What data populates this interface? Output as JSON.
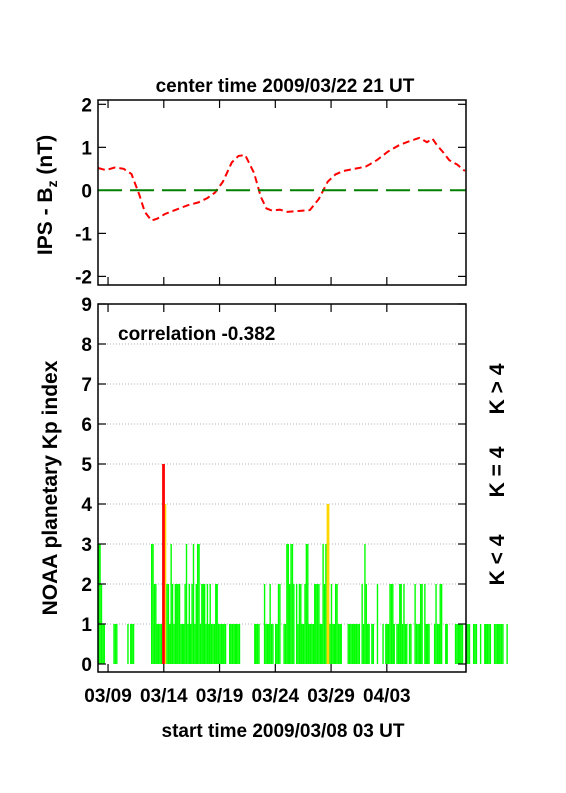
{
  "chart_data": [
    {
      "type": "line",
      "title": "center time 2009/03/22 21 UT",
      "ylabel_main": "IPS - B",
      "ylabel_sub": "z",
      "ylabel_unit": " (nT)",
      "xlim_days": [
        0,
        33
      ],
      "ylim": [
        -2.2,
        2.1
      ],
      "yticks": [
        "2",
        "1",
        "0",
        "-1",
        "-2"
      ],
      "ytick_values": [
        2,
        1,
        0,
        -1,
        -2
      ],
      "series": [
        {
          "color": "#ff0000",
          "style": "dashed",
          "x": [
            0,
            0.7,
            1.5,
            2.3,
            3.0,
            3.7,
            4.2,
            4.8,
            5.3,
            6.0,
            7.0,
            8.0,
            9.0,
            9.8,
            10.5,
            11.2,
            12.0,
            12.6,
            13.2,
            14.0,
            14.6,
            15.1,
            15.6,
            16.3,
            17.0,
            18.0,
            19.0,
            19.8,
            20.6,
            21.3,
            22.0,
            23.0,
            24.0,
            25.0,
            26.0,
            27.0,
            28.0,
            28.8,
            29.5,
            30.0,
            30.4,
            30.9,
            31.5,
            32.2,
            32.9
          ],
          "y": [
            0.52,
            0.47,
            0.53,
            0.5,
            0.38,
            -0.1,
            -0.5,
            -0.7,
            -0.66,
            -0.55,
            -0.45,
            -0.35,
            -0.28,
            -0.18,
            -0.05,
            0.2,
            0.65,
            0.8,
            0.82,
            0.4,
            -0.15,
            -0.42,
            -0.47,
            -0.45,
            -0.5,
            -0.48,
            -0.46,
            -0.2,
            0.2,
            0.37,
            0.45,
            0.5,
            0.55,
            0.7,
            0.9,
            1.05,
            1.15,
            1.22,
            1.12,
            1.2,
            1.05,
            0.9,
            0.7,
            0.6,
            0.45
          ]
        },
        {
          "color": "#008000",
          "style": "long-dashed",
          "x": [
            0,
            33
          ],
          "y": [
            0,
            0
          ]
        }
      ]
    },
    {
      "type": "bar",
      "ylabel": "NOAA planetary Kp index",
      "annotation": "correlation -0.382",
      "xlim_days": [
        0,
        33
      ],
      "ylim": [
        -0.2,
        9
      ],
      "yticks": [
        "9",
        "8",
        "7",
        "6",
        "5",
        "4",
        "3",
        "2",
        "1",
        "0"
      ],
      "ytick_values": [
        9,
        8,
        7,
        6,
        5,
        4,
        3,
        2,
        1,
        0
      ],
      "xticks": [
        "03/09",
        "03/14",
        "03/19",
        "03/24",
        "03/29",
        "04/03"
      ],
      "xtick_days": [
        0.9,
        5.9,
        10.9,
        15.9,
        20.9,
        25.9
      ],
      "xlabel": "start time 2009/03/08 03 UT",
      "bar_width_days": 0.125,
      "color_low": "#00ff00",
      "color_mid": "#ffd700",
      "color_high": "#ff0000",
      "legend": {
        "low": "K < 4",
        "mid": "K = 4",
        "high": "K > 4",
        "placement": "right"
      },
      "values": [
        3,
        3,
        2,
        1,
        1,
        0,
        0,
        0,
        0,
        0,
        0,
        1,
        1,
        1,
        0,
        0,
        0,
        0,
        0,
        0,
        0,
        1,
        0,
        1,
        1,
        1,
        0,
        0,
        0,
        0,
        0,
        0,
        0,
        0,
        0,
        0,
        0,
        0,
        3,
        3,
        2,
        2,
        1,
        1,
        1,
        1,
        5,
        5,
        4,
        2,
        2,
        1,
        3,
        2,
        1,
        2,
        2,
        2,
        2,
        1,
        1,
        1,
        2,
        3,
        1,
        2,
        1,
        2,
        3,
        1,
        2,
        3,
        3,
        1,
        2,
        2,
        2,
        1,
        2,
        1,
        2,
        1,
        1,
        1,
        2,
        2,
        1,
        1,
        1,
        1,
        1,
        1,
        0,
        0,
        1,
        1,
        1,
        1,
        1,
        1,
        1,
        1,
        0,
        0,
        0,
        0,
        0,
        0,
        0,
        0,
        0,
        0,
        1,
        1,
        1,
        1,
        0,
        0,
        0,
        2,
        1,
        1,
        1,
        2,
        1,
        1,
        0,
        1,
        1,
        2,
        2,
        0,
        0,
        1,
        1,
        3,
        3,
        2,
        3,
        3,
        2,
        0,
        2,
        1,
        2,
        2,
        1,
        1,
        2,
        3,
        3,
        1,
        1,
        1,
        1,
        2,
        2,
        2,
        2,
        1,
        1,
        3,
        2,
        3,
        4,
        4,
        1,
        2,
        1,
        1,
        2,
        2,
        1,
        1,
        1,
        0,
        0,
        0,
        0,
        1,
        1,
        1,
        1,
        1,
        1,
        1,
        1,
        1,
        0,
        2,
        1,
        3,
        2,
        1,
        1,
        0,
        1,
        1,
        0,
        0,
        2,
        0,
        0,
        0,
        1,
        0,
        1,
        1,
        1,
        2,
        2,
        2,
        1,
        0,
        1,
        1,
        2,
        2,
        1,
        2,
        1,
        1,
        0,
        1,
        1,
        0,
        0,
        2,
        1,
        1,
        1,
        2,
        2,
        0,
        2,
        1,
        1,
        1,
        0,
        0,
        0,
        1,
        2,
        1,
        1,
        2,
        2,
        0,
        0,
        1,
        1,
        0,
        0,
        0,
        0,
        0,
        1,
        1,
        1,
        1,
        1,
        1,
        0,
        0,
        1,
        1,
        1,
        0,
        0,
        1,
        1,
        1,
        0,
        0,
        1,
        0,
        0,
        1,
        1,
        1,
        1,
        1,
        0,
        0,
        1,
        1,
        1,
        1,
        1,
        1,
        1,
        0,
        0,
        1
      ]
    }
  ]
}
